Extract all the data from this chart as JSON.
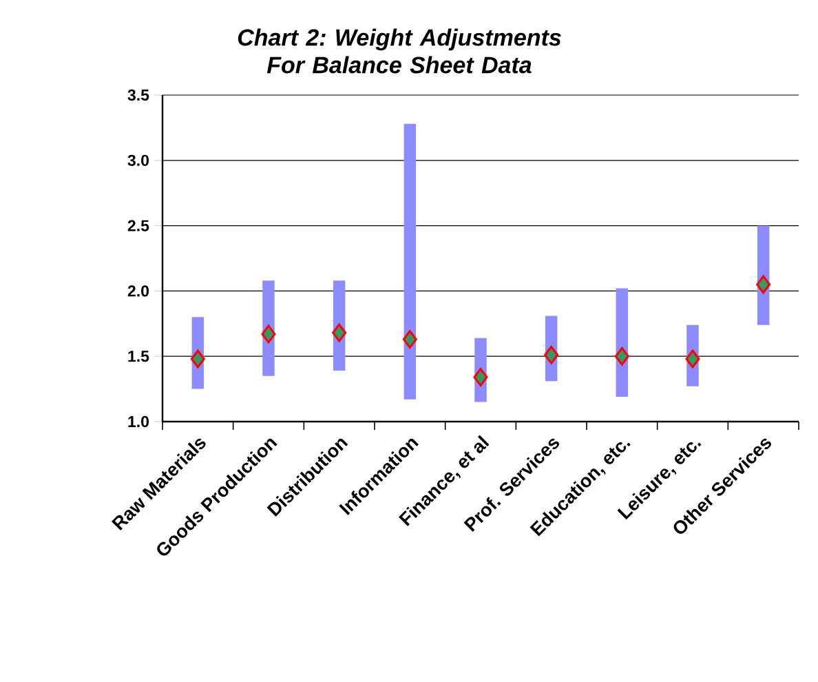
{
  "chart_data": {
    "type": "bar",
    "title": "Chart 2: Weight Adjustments For Balance Sheet Data",
    "categories": [
      "Raw Materials",
      "Goods Production",
      "Distribution",
      "Information",
      "Finance, et al",
      "Prof. Services",
      "Education, etc.",
      "Leisure, etc.",
      "Other Services"
    ],
    "series": [
      {
        "color": "#8c8cff",
        "base": [
          1.25,
          1.35,
          1.39,
          1.17,
          1.15,
          1.31,
          1.19,
          1.27,
          1.74
        ],
        "values": [
          0.55,
          0.73,
          0.69,
          2.11,
          0.49,
          0.5,
          0.83,
          0.47,
          0.76
        ]
      },
      {
        "type": "scatter",
        "color": "#339966",
        "marker": "diamond",
        "x": [
          "Raw Materials",
          "Goods Production",
          "Distribution",
          "Information",
          "Finance, et al",
          "Prof. Services",
          "Education, etc.",
          "Leisure, etc.",
          "Other Services"
        ],
        "values": [
          1.48,
          1.67,
          1.68,
          1.63,
          1.34,
          1.51,
          1.5,
          1.48,
          2.05
        ]
      }
    ],
    "ylim": [
      1.0,
      3.5
    ],
    "yticks": [
      {
        "value": 1.0,
        "label": "1.0"
      },
      {
        "value": 1.5,
        "label": "1.5"
      },
      {
        "value": 2.0,
        "label": "2.0"
      },
      {
        "value": 2.5,
        "label": "2.5"
      },
      {
        "value": 3.0,
        "label": "3.0"
      },
      {
        "value": 3.5,
        "label": "3.5"
      }
    ],
    "grid": "y"
  }
}
